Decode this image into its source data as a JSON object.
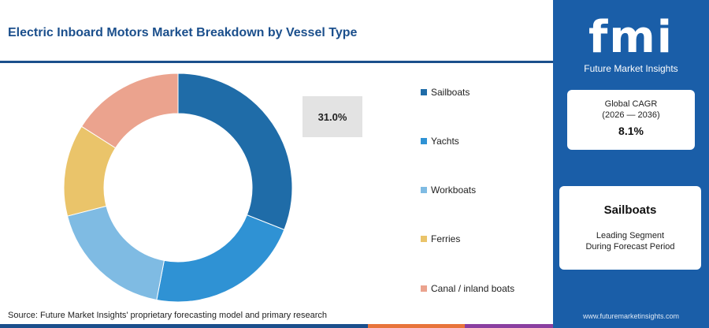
{
  "title": "Electric Inboard Motors Market Breakdown by Vessel Type",
  "callout_value": "31.0%",
  "source": "Source: Future Market Insights' proprietary forecasting model and primary research",
  "chart_data": {
    "type": "pie",
    "donut": true,
    "categories": [
      "Sailboats",
      "Yachts",
      "Workboats",
      "Ferries",
      "Canal / inland boats"
    ],
    "values": [
      31.0,
      22.0,
      18.0,
      13.0,
      16.0
    ],
    "colors": [
      "#1f6ca8",
      "#2f92d4",
      "#7fbbe3",
      "#eac46a",
      "#eba38e"
    ],
    "legend_position": "right"
  },
  "sidebar": {
    "logo_text": "fmi",
    "logo_subtitle": "Future Market Insights",
    "cagr_label": "Global CAGR",
    "cagr_period": "(2026 — 2036)",
    "cagr_value": "8.1%",
    "leading_segment": "Sailboats",
    "leading_label_1": "Leading Segment",
    "leading_label_2": "During Forecast Period",
    "website": "www.futuremarketinsights.com"
  },
  "bottom_bar_colors": [
    "#1b4f8c",
    "#e8743b",
    "#8a3fa0"
  ]
}
